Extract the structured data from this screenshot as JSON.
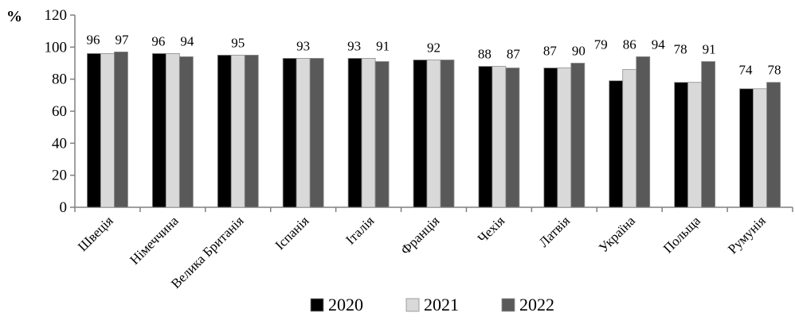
{
  "chart_data": {
    "type": "bar",
    "y_unit": "%",
    "categories": [
      "Швеція",
      "Німеччина",
      "Велика Британія",
      "Іспанія",
      "Італія",
      "Франція",
      "Чехія",
      "Латвія",
      "Україна",
      "Польща",
      "Румунія"
    ],
    "series": [
      {
        "name": "2020",
        "color": "#000000",
        "values": [
          96,
          96,
          95,
          93,
          93,
          92,
          88,
          87,
          79,
          78,
          74
        ]
      },
      {
        "name": "2021",
        "color": "#d9d9d9",
        "values": [
          96,
          96,
          95,
          93,
          93,
          92,
          88,
          87,
          86,
          78,
          74
        ]
      },
      {
        "name": "2022",
        "color": "#595959",
        "values": [
          97,
          94,
          95,
          93,
          91,
          92,
          87,
          90,
          94,
          91,
          78
        ]
      }
    ],
    "data_labels": [
      [
        "96",
        "97"
      ],
      [
        "96",
        "94"
      ],
      [
        "95"
      ],
      [
        "93"
      ],
      [
        "93",
        "91"
      ],
      [
        "92"
      ],
      [
        "88",
        "87"
      ],
      [
        "87",
        "90"
      ],
      [
        "79",
        "86",
        "94"
      ],
      [
        "78",
        "91"
      ],
      [
        "74",
        "78"
      ]
    ],
    "ylim": [
      0,
      120
    ],
    "yticks": [
      "0",
      "20",
      "40",
      "60",
      "80",
      "100",
      "120"
    ],
    "grid": false,
    "legend_position": "bottom"
  }
}
